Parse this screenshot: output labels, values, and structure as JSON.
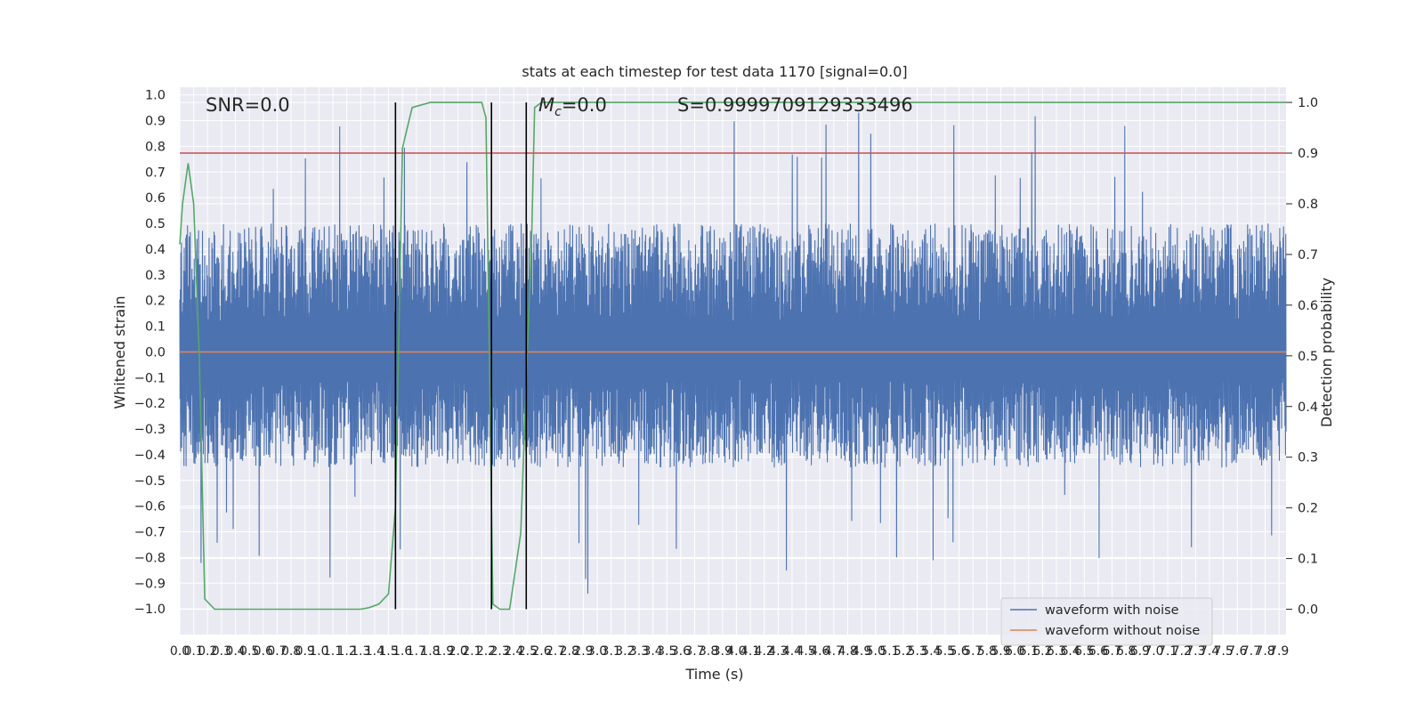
{
  "chart_data": {
    "type": "line",
    "title": "stats at each timestep for test data 1170 [signal=0.0]",
    "xlabel": "Time (s)",
    "ylabel": "Whitened strain",
    "y2label": "Detection probability",
    "xlim": [
      0.0,
      7.95
    ],
    "ylim": [
      -1.1,
      1.03
    ],
    "y2lim": [
      -0.05,
      1.03
    ],
    "grid": true,
    "x_tick_values": [
      0.0,
      0.1,
      0.2,
      0.3,
      0.4,
      0.5,
      0.6,
      0.7,
      0.8,
      0.9,
      1.0,
      1.1,
      1.2,
      1.3,
      1.4,
      1.5,
      1.6,
      1.7,
      1.8,
      1.9,
      2.0,
      2.1,
      2.2,
      2.3,
      2.4,
      2.5,
      2.6,
      2.7,
      2.8,
      2.9,
      3.0,
      3.1,
      3.2,
      3.3,
      3.4,
      3.5,
      3.6,
      3.7,
      3.8,
      3.9,
      4.0,
      4.1,
      4.2,
      4.3,
      4.4,
      4.5,
      4.6,
      4.7,
      4.8,
      4.9,
      5.0,
      5.1,
      5.2,
      5.3,
      5.4,
      5.5,
      5.6,
      5.7,
      5.8,
      5.9,
      6.0,
      6.1,
      6.2,
      6.3,
      6.4,
      6.5,
      6.6,
      6.7,
      6.8,
      6.9,
      7.0,
      7.1,
      7.2,
      7.3,
      7.4,
      7.5,
      7.6,
      7.7,
      7.8,
      7.9
    ],
    "x_tick_labels": [
      "0.0",
      "0.1",
      "0.2",
      "0.3",
      "0.4",
      "0.5",
      "0.6",
      "0.7",
      "0.8",
      "0.9",
      "1.0",
      "1.1",
      "1.2",
      "1.3",
      "1.4",
      "1.5",
      "1.6",
      "1.7",
      "1.8",
      "1.9",
      "2.0",
      "2.1",
      "2.2",
      "2.3",
      "2.4",
      "2.5",
      "2.6",
      "2.7",
      "2.8",
      "2.9",
      "3.0",
      "3.1",
      "3.2",
      "3.3",
      "3.4",
      "3.5",
      "3.6",
      "3.7",
      "3.8",
      "3.9",
      "4.0",
      "4.1",
      "4.2",
      "4.3",
      "4.4",
      "4.5",
      "4.6",
      "4.7",
      "4.8",
      "4.9",
      "5.0",
      "5.1",
      "5.2",
      "5.3",
      "5.4",
      "5.5",
      "5.6",
      "5.7",
      "5.8",
      "5.9",
      "6.0",
      "6.1",
      "6.2",
      "6.3",
      "6.4",
      "6.5",
      "6.6",
      "6.7",
      "6.8",
      "6.9",
      "7.0",
      "7.1",
      "7.2",
      "7.3",
      "7.4",
      "7.5",
      "7.6",
      "7.7",
      "7.8",
      "7.9"
    ],
    "y_tick_values": [
      1.0,
      0.9,
      0.8,
      0.7,
      0.6,
      0.5,
      0.4,
      0.3,
      0.2,
      0.1,
      0.0,
      -0.1,
      -0.2,
      -0.3,
      -0.4,
      -0.5,
      -0.6,
      -0.7,
      -0.8,
      -0.9,
      -1.0
    ],
    "y_tick_labels": [
      "1.0",
      "0.9",
      "0.8",
      "0.7",
      "0.6",
      "0.5",
      "0.4",
      "0.3",
      "0.2",
      "0.1",
      "0.0",
      "−0.1",
      "−0.2",
      "−0.3",
      "−0.4",
      "−0.5",
      "−0.6",
      "−0.7",
      "−0.8",
      "−0.9",
      "−1.0"
    ],
    "y2_tick_values": [
      1.0,
      0.9,
      0.8,
      0.7,
      0.6,
      0.5,
      0.4,
      0.3,
      0.2,
      0.1,
      0.0
    ],
    "y2_tick_labels": [
      "1.0",
      "0.9",
      "0.8",
      "0.7",
      "0.6",
      "0.5",
      "0.4",
      "0.3",
      "0.2",
      "0.1",
      "0.0"
    ],
    "series": [
      {
        "name": "waveform with noise",
        "color": "#4c72b0",
        "kind": "noise",
        "x_range": [
          0.0,
          7.95
        ],
        "y_range": [
          -0.97,
          0.94
        ],
        "typical_amplitude": [
          -0.45,
          0.5
        ]
      },
      {
        "name": "waveform without noise",
        "color": "#dd8452",
        "x": [
          0.0,
          7.95
        ],
        "y": [
          0.0,
          0.0
        ]
      },
      {
        "color": "#55a868",
        "axis": "y2",
        "x": [
          0.0,
          0.02,
          0.06,
          0.1,
          0.14,
          0.18,
          0.25,
          0.4,
          0.8,
          1.2,
          1.3,
          1.36,
          1.43,
          1.5,
          1.55,
          1.6,
          1.67,
          1.8,
          2.0,
          2.17,
          2.2,
          2.25,
          2.3,
          2.37,
          2.45,
          2.49,
          2.53,
          2.55,
          2.6,
          3.0,
          7.95
        ],
        "y": [
          0.72,
          0.8,
          0.88,
          0.8,
          0.5,
          0.02,
          0.0,
          0.0,
          0.0,
          0.0,
          0.0,
          0.003,
          0.01,
          0.03,
          0.2,
          0.91,
          0.99,
          1.0,
          1.0,
          1.0,
          0.97,
          0.01,
          0.0,
          0.0,
          0.15,
          0.45,
          0.75,
          0.99,
          1.0,
          1.0,
          1.0
        ]
      },
      {
        "color": "#c44e52",
        "axis": "y2",
        "x": [
          0.0,
          7.95
        ],
        "y": [
          0.9,
          0.9
        ]
      }
    ],
    "vertical_lines": [
      1.55,
      2.24,
      2.49
    ],
    "vertical_lines_y2": [
      0.0,
      1.0
    ],
    "annotations": {
      "snr": "SNR=0.0",
      "mc_symbol": "M",
      "mc_sub": "c",
      "mc_value": "=0.0",
      "s": "S=0.9999709129333496"
    },
    "legend": {
      "position": "lower right",
      "entries": [
        "waveform with noise",
        "waveform without noise"
      ]
    },
    "colors": {
      "axes_bg": "#eaeaf2",
      "grid": "#ffffff",
      "text": "#262626"
    }
  }
}
